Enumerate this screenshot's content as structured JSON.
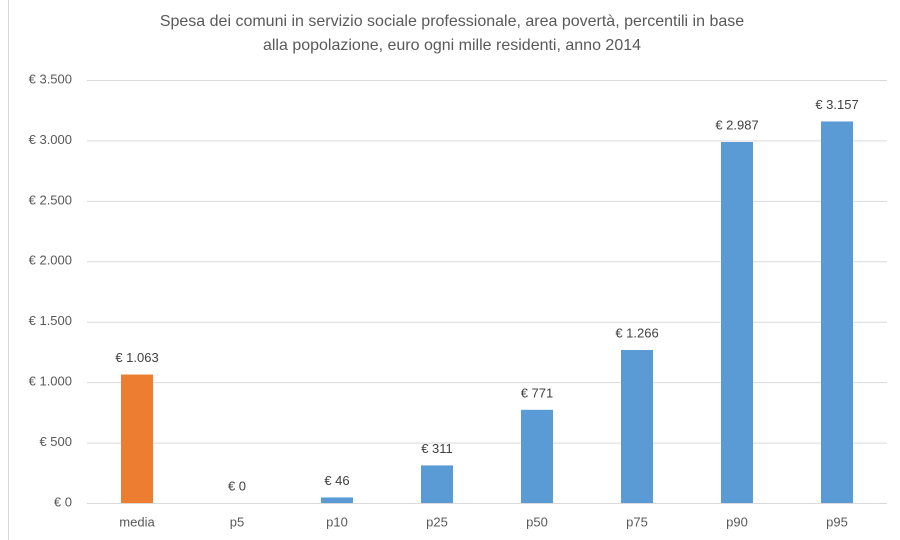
{
  "chart_data": {
    "type": "bar",
    "title": [
      "Spesa dei comuni in servizio sociale professionale, area povertà, percentili in base",
      "alla popolazione, euro ogni mille residenti, anno 2014"
    ],
    "categories": [
      "media",
      "p5",
      "p10",
      "p25",
      "p50",
      "p75",
      "p90",
      "p95"
    ],
    "values": [
      1063,
      0,
      46,
      311,
      771,
      1266,
      2987,
      3157
    ],
    "value_labels": [
      "€ 1.063",
      "€ 0",
      "€ 46",
      "€ 311",
      "€ 771",
      "€ 1.266",
      "€ 2.987",
      "€ 3.157"
    ],
    "colors": [
      "#ed7d31",
      "#5b9bd5",
      "#5b9bd5",
      "#5b9bd5",
      "#5b9bd5",
      "#5b9bd5",
      "#5b9bd5",
      "#5b9bd5"
    ],
    "ylim": [
      0,
      3500
    ],
    "yticks": [
      {
        "value": 0,
        "label": "€ 0"
      },
      {
        "value": 500,
        "label": "€ 500"
      },
      {
        "value": 1000,
        "label": "€ 1.000"
      },
      {
        "value": 1500,
        "label": "€ 1.500"
      },
      {
        "value": 2000,
        "label": "€ 2.000"
      },
      {
        "value": 2500,
        "label": "€ 2.500"
      },
      {
        "value": 3000,
        "label": "€ 3.000"
      },
      {
        "value": 3500,
        "label": "€ 3.500"
      }
    ],
    "grid": true
  }
}
